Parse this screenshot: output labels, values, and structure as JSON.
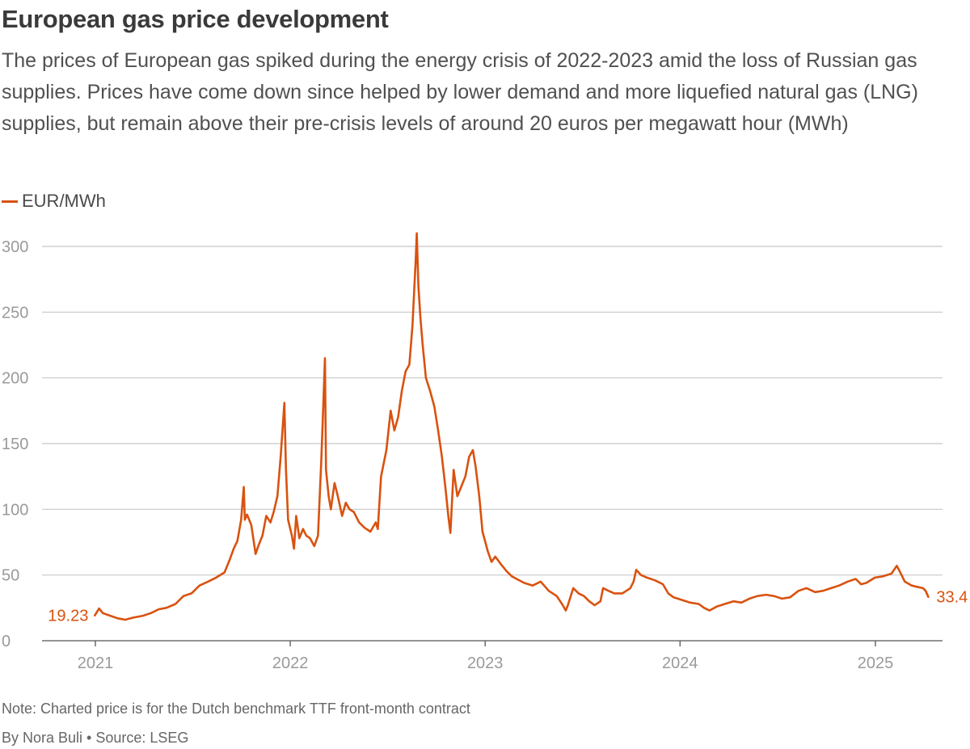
{
  "title": "European gas price development",
  "subtitle": "The prices of European gas spiked during the energy crisis of 2022-2023 amid the loss of Russian gas supplies. Prices have come down since helped by lower demand and more liquefied natural gas (LNG) supplies, but remain above their pre-crisis levels of around 20 euros per megawatt hour (MWh)",
  "note": "Note: Charted price is for the Dutch benchmark TTF front-month contract",
  "credit": "By Nora Buli • Source: LSEG",
  "chart_data": {
    "type": "line",
    "ylim": [
      0,
      300
    ],
    "yticks": [
      0,
      50,
      100,
      150,
      200,
      250,
      300
    ],
    "xticks": [
      "2021",
      "2022",
      "2023",
      "2024",
      "2025"
    ],
    "grid": true,
    "legend_position": "top-left",
    "color": "#d9520f",
    "series": [
      {
        "name": "EUR/MWh",
        "points": [
          [
            "2020-12-31",
            19.23
          ],
          [
            "2021-01-08",
            24.5
          ],
          [
            "2021-01-15",
            21
          ],
          [
            "2021-01-29",
            19
          ],
          [
            "2021-02-12",
            17
          ],
          [
            "2021-02-26",
            16
          ],
          [
            "2021-03-12",
            17.5
          ],
          [
            "2021-03-31",
            19
          ],
          [
            "2021-04-15",
            21
          ],
          [
            "2021-04-30",
            24
          ],
          [
            "2021-05-14",
            25
          ],
          [
            "2021-05-31",
            28
          ],
          [
            "2021-06-15",
            34
          ],
          [
            "2021-06-30",
            36
          ],
          [
            "2021-07-15",
            42
          ],
          [
            "2021-07-31",
            45
          ],
          [
            "2021-08-15",
            48
          ],
          [
            "2021-08-31",
            52
          ],
          [
            "2021-09-10",
            62
          ],
          [
            "2021-09-17",
            70
          ],
          [
            "2021-09-24",
            76
          ],
          [
            "2021-10-01",
            92
          ],
          [
            "2021-10-06",
            117
          ],
          [
            "2021-10-08",
            92
          ],
          [
            "2021-10-12",
            96
          ],
          [
            "2021-10-20",
            88
          ],
          [
            "2021-10-28",
            66
          ],
          [
            "2021-11-02",
            72
          ],
          [
            "2021-11-10",
            80
          ],
          [
            "2021-11-17",
            95
          ],
          [
            "2021-11-25",
            90
          ],
          [
            "2021-12-01",
            98
          ],
          [
            "2021-12-08",
            110
          ],
          [
            "2021-12-14",
            140
          ],
          [
            "2021-12-21",
            181
          ],
          [
            "2021-12-24",
            130
          ],
          [
            "2021-12-28",
            92
          ],
          [
            "2022-01-04",
            80
          ],
          [
            "2022-01-08",
            70
          ],
          [
            "2022-01-12",
            95
          ],
          [
            "2022-01-18",
            78
          ],
          [
            "2022-01-25",
            85
          ],
          [
            "2022-01-31",
            80
          ],
          [
            "2022-02-07",
            78
          ],
          [
            "2022-02-15",
            72
          ],
          [
            "2022-02-22",
            80
          ],
          [
            "2022-02-28",
            136
          ],
          [
            "2022-03-04",
            180
          ],
          [
            "2022-03-07",
            215
          ],
          [
            "2022-03-09",
            130
          ],
          [
            "2022-03-14",
            110
          ],
          [
            "2022-03-18",
            100
          ],
          [
            "2022-03-25",
            120
          ],
          [
            "2022-03-31",
            110
          ],
          [
            "2022-04-08",
            95
          ],
          [
            "2022-04-15",
            105
          ],
          [
            "2022-04-22",
            100
          ],
          [
            "2022-04-30",
            98
          ],
          [
            "2022-05-10",
            90
          ],
          [
            "2022-05-20",
            86
          ],
          [
            "2022-05-31",
            83
          ],
          [
            "2022-06-10",
            90
          ],
          [
            "2022-06-14",
            85
          ],
          [
            "2022-06-20",
            125
          ],
          [
            "2022-06-30",
            145
          ],
          [
            "2022-07-08",
            175
          ],
          [
            "2022-07-15",
            160
          ],
          [
            "2022-07-22",
            170
          ],
          [
            "2022-07-29",
            190
          ],
          [
            "2022-08-05",
            205
          ],
          [
            "2022-08-12",
            210
          ],
          [
            "2022-08-18",
            240
          ],
          [
            "2022-08-24",
            290
          ],
          [
            "2022-08-26",
            310
          ],
          [
            "2022-08-29",
            270
          ],
          [
            "2022-09-02",
            245
          ],
          [
            "2022-09-06",
            225
          ],
          [
            "2022-09-12",
            200
          ],
          [
            "2022-09-20",
            190
          ],
          [
            "2022-09-28",
            178
          ],
          [
            "2022-10-05",
            160
          ],
          [
            "2022-10-12",
            140
          ],
          [
            "2022-10-19",
            115
          ],
          [
            "2022-10-24",
            95
          ],
          [
            "2022-10-28",
            82
          ],
          [
            "2022-11-03",
            130
          ],
          [
            "2022-11-10",
            110
          ],
          [
            "2022-11-18",
            118
          ],
          [
            "2022-11-25",
            125
          ],
          [
            "2022-12-02",
            140
          ],
          [
            "2022-12-09",
            145
          ],
          [
            "2022-12-14",
            133
          ],
          [
            "2022-12-21",
            110
          ],
          [
            "2022-12-27",
            83
          ],
          [
            "2023-01-06",
            68
          ],
          [
            "2023-01-13",
            60
          ],
          [
            "2023-01-20",
            64
          ],
          [
            "2023-01-31",
            58
          ],
          [
            "2023-02-10",
            53
          ],
          [
            "2023-02-20",
            49
          ],
          [
            "2023-03-01",
            47
          ],
          [
            "2023-03-15",
            44
          ],
          [
            "2023-03-31",
            42
          ],
          [
            "2023-04-15",
            45
          ],
          [
            "2023-04-30",
            38
          ],
          [
            "2023-05-15",
            34
          ],
          [
            "2023-05-25",
            28
          ],
          [
            "2023-06-01",
            23
          ],
          [
            "2023-06-05",
            27
          ],
          [
            "2023-06-15",
            40
          ],
          [
            "2023-06-25",
            36
          ],
          [
            "2023-07-05",
            34
          ],
          [
            "2023-07-15",
            30
          ],
          [
            "2023-07-25",
            27
          ],
          [
            "2023-08-05",
            30
          ],
          [
            "2023-08-10",
            40
          ],
          [
            "2023-08-20",
            38
          ],
          [
            "2023-08-31",
            36
          ],
          [
            "2023-09-15",
            36
          ],
          [
            "2023-09-30",
            40
          ],
          [
            "2023-10-06",
            45
          ],
          [
            "2023-10-11",
            54
          ],
          [
            "2023-10-20",
            50
          ],
          [
            "2023-10-31",
            48
          ],
          [
            "2023-11-15",
            46
          ],
          [
            "2023-11-30",
            43
          ],
          [
            "2023-12-10",
            36
          ],
          [
            "2023-12-20",
            33
          ],
          [
            "2024-01-05",
            31
          ],
          [
            "2024-01-20",
            29
          ],
          [
            "2024-02-05",
            28
          ],
          [
            "2024-02-15",
            25
          ],
          [
            "2024-02-25",
            23
          ],
          [
            "2024-03-10",
            26
          ],
          [
            "2024-03-25",
            28
          ],
          [
            "2024-04-10",
            30
          ],
          [
            "2024-04-25",
            29
          ],
          [
            "2024-05-10",
            32
          ],
          [
            "2024-05-25",
            34
          ],
          [
            "2024-06-10",
            35
          ],
          [
            "2024-06-25",
            34
          ],
          [
            "2024-07-10",
            32
          ],
          [
            "2024-07-25",
            33
          ],
          [
            "2024-08-10",
            38
          ],
          [
            "2024-08-25",
            40
          ],
          [
            "2024-09-10",
            37
          ],
          [
            "2024-09-25",
            38
          ],
          [
            "2024-10-10",
            40
          ],
          [
            "2024-10-25",
            42
          ],
          [
            "2024-11-10",
            45
          ],
          [
            "2024-11-25",
            47
          ],
          [
            "2024-12-05",
            43
          ],
          [
            "2024-12-15",
            44
          ],
          [
            "2024-12-31",
            48
          ],
          [
            "2025-01-15",
            49
          ],
          [
            "2025-01-31",
            51
          ],
          [
            "2025-02-10",
            57
          ],
          [
            "2025-02-14",
            54
          ],
          [
            "2025-02-25",
            45
          ],
          [
            "2025-03-10",
            42
          ],
          [
            "2025-03-20",
            41
          ],
          [
            "2025-03-31",
            40
          ],
          [
            "2025-04-05",
            38
          ],
          [
            "2025-04-10",
            33.4
          ]
        ]
      }
    ],
    "end_labels": [
      {
        "position": "start",
        "text": "19.23"
      },
      {
        "position": "end",
        "text": "33.4"
      }
    ]
  }
}
